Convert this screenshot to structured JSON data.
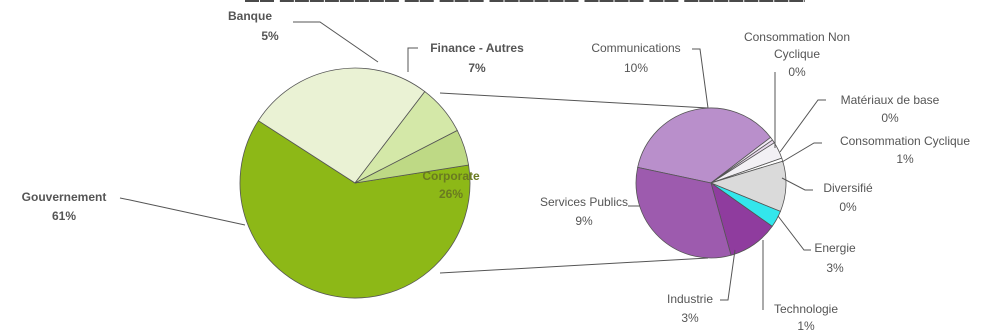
{
  "chart_data": [
    {
      "type": "pie",
      "role": "main",
      "slices": [
        {
          "label": "Gouvernement",
          "value": 61,
          "value_label": "61%",
          "color": "#8db817"
        },
        {
          "label": "Corporate",
          "value": 26,
          "value_label": "26%",
          "color": "#eaf2d4"
        },
        {
          "label": "Finance - Autres",
          "value": 7,
          "value_label": "7%",
          "color": "#d4e8a8"
        },
        {
          "label": "Banque",
          "value": 5,
          "value_label": "5%",
          "color": "#bed985"
        }
      ]
    },
    {
      "type": "pie",
      "role": "detail",
      "slices": [
        {
          "label": "Communications",
          "value": 10,
          "value_label": "10%",
          "color": "#b98fcb"
        },
        {
          "label": "Consommation Non Cyclique",
          "value": 0,
          "value_label": "0%",
          "color": "#f2eaf5"
        },
        {
          "label": "Matériaux de base",
          "value": 0,
          "value_label": "0%",
          "color": "#eadbee"
        },
        {
          "label": "Consommation Cyclique",
          "value": 1,
          "value_label": "1%",
          "color": "#f2f0f4"
        },
        {
          "label": "Diversifié",
          "value": 0,
          "value_label": "0%",
          "color": "#ffffff"
        },
        {
          "label": "Energie",
          "value": 3,
          "value_label": "3%",
          "color": "#dadada"
        },
        {
          "label": "Technologie",
          "value": 1,
          "value_label": "1%",
          "color": "#33e6ec"
        },
        {
          "label": "Industrie",
          "value": 3,
          "value_label": "3%",
          "color": "#8f3c9e"
        },
        {
          "label": "Services Publics",
          "value": 9,
          "value_label": "9%",
          "color": "#9d5bae"
        }
      ]
    }
  ]
}
